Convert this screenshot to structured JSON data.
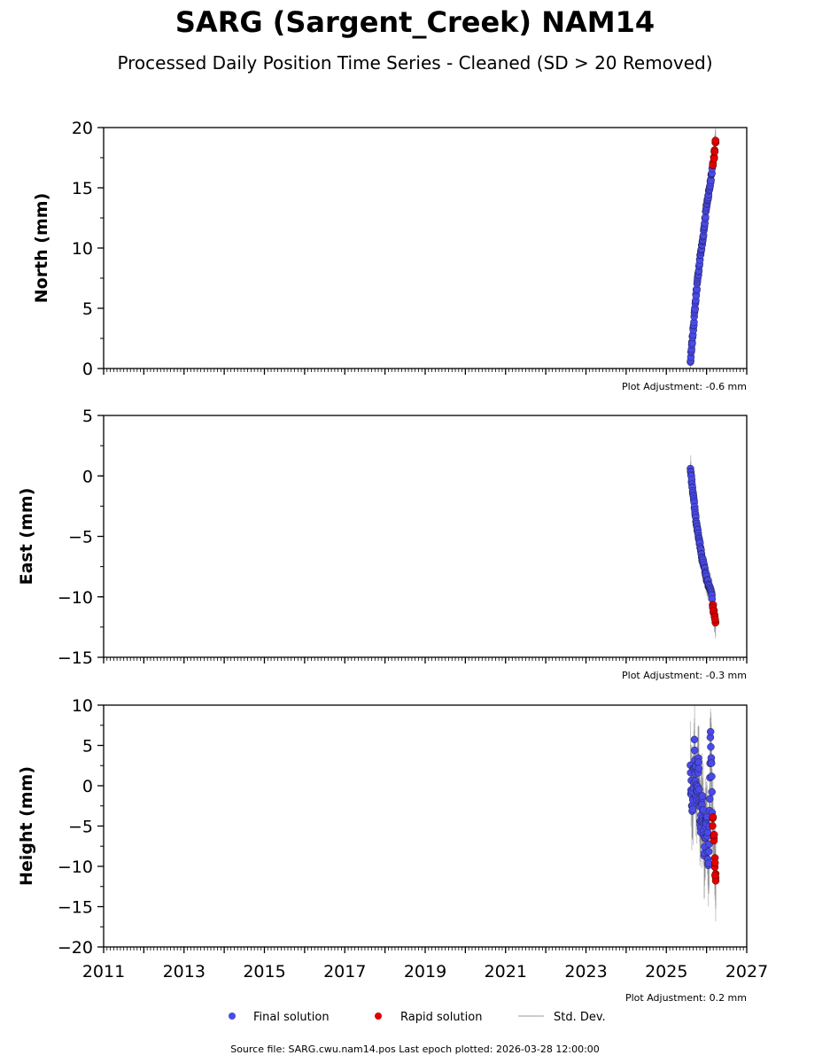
{
  "title": "SARG (Sargent_Creek) NAM14",
  "subtitle": "Processed Daily Position Time Series - Cleaned (SD > 20 Removed)",
  "footer": "Source file: SARG.cwu.nam14.pos  Last epoch plotted: 2026-03-28 12:00:00",
  "legend": {
    "final": "Final solution",
    "rapid": "Rapid solution",
    "std": "Std. Dev."
  },
  "colors": {
    "final": "#4a4ae8",
    "rapid": "#e00000",
    "std": "#808080"
  },
  "chart_data": [
    {
      "type": "scatter",
      "ylabel": "North (mm)",
      "adjustment": "Plot Adjustment: -0.6 mm",
      "xlim": [
        2011,
        2027
      ],
      "ylim": [
        0,
        20
      ],
      "yticks": [
        0,
        5,
        10,
        15,
        20
      ],
      "series": [
        {
          "name": "Final solution",
          "x": [
            2025.6,
            2025.65,
            2025.7,
            2025.75,
            2025.8,
            2025.85,
            2025.9,
            2025.95,
            2026.0,
            2026.05,
            2026.1,
            2026.14
          ],
          "y": [
            0.5,
            2.5,
            4.5,
            6.5,
            8.0,
            9.5,
            10.5,
            12.0,
            13.5,
            14.5,
            15.5,
            16.5
          ]
        },
        {
          "name": "Rapid solution",
          "x": [
            2026.16,
            2026.18,
            2026.2,
            2026.22
          ],
          "y": [
            17.0,
            17.5,
            18.0,
            18.8
          ]
        }
      ]
    },
    {
      "type": "scatter",
      "ylabel": "East (mm)",
      "adjustment": "Plot Adjustment: -0.3 mm",
      "xlim": [
        2011,
        2027
      ],
      "ylim": [
        -15,
        5
      ],
      "yticks": [
        -15,
        -10,
        -5,
        0,
        5
      ],
      "series": [
        {
          "name": "Final solution",
          "x": [
            2025.6,
            2025.65,
            2025.7,
            2025.75,
            2025.8,
            2025.85,
            2025.9,
            2025.95,
            2026.0,
            2026.05,
            2026.1,
            2026.14
          ],
          "y": [
            0.5,
            -1.0,
            -2.5,
            -4.0,
            -5.0,
            -6.0,
            -7.0,
            -7.5,
            -8.5,
            -9.0,
            -9.5,
            -10.0
          ]
        },
        {
          "name": "Rapid solution",
          "x": [
            2026.16,
            2026.18,
            2026.2,
            2026.22
          ],
          "y": [
            -10.8,
            -11.2,
            -11.6,
            -12.0
          ]
        }
      ]
    },
    {
      "type": "scatter",
      "ylabel": "Height (mm)",
      "adjustment": "Plot Adjustment: 0.2 mm",
      "xlim": [
        2011,
        2027
      ],
      "ylim": [
        -20,
        10
      ],
      "yticks": [
        -20,
        -15,
        -10,
        -5,
        0,
        5,
        10
      ],
      "xticks": [
        2011,
        2013,
        2015,
        2017,
        2019,
        2021,
        2023,
        2025,
        2027
      ],
      "series": [
        {
          "name": "Final solution",
          "x": [
            2025.6,
            2025.65,
            2025.7,
            2025.75,
            2025.8,
            2025.85,
            2025.9,
            2025.95,
            2026.0,
            2026.05,
            2026.1,
            2026.14
          ],
          "y": [
            1.0,
            -3.0,
            5.0,
            -1.0,
            3.0,
            -5.0,
            -2.0,
            -8.0,
            -4.0,
            -10.0,
            6.5,
            -3.0
          ]
        },
        {
          "name": "Rapid solution",
          "x": [
            2026.16,
            2026.18,
            2026.2,
            2026.22
          ],
          "y": [
            -4.5,
            -6.0,
            -9.5,
            -11.5
          ]
        }
      ]
    }
  ]
}
